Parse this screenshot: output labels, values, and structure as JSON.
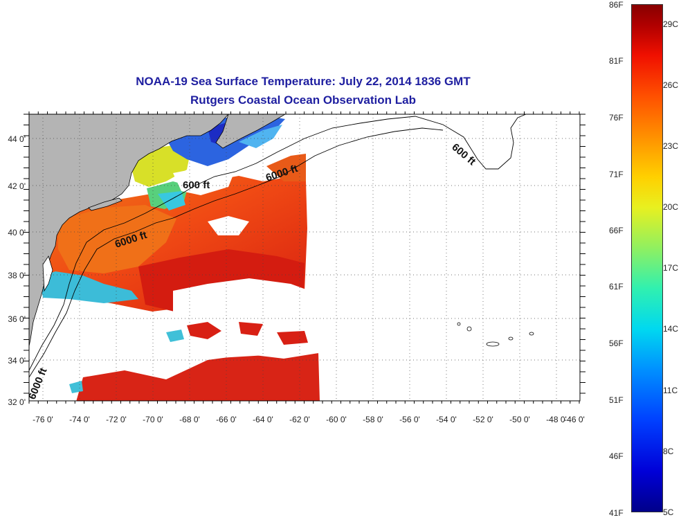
{
  "title": {
    "line1": "NOAA-19 Sea Surface Temperature:  July 22, 2014 1836 GMT",
    "line2": "Rutgers Coastal Ocean Observation Lab"
  },
  "map": {
    "longitude_labels": [
      "-76 0'",
      "-74 0'",
      "-72 0'",
      "-70 0'",
      "-68 0'",
      "-66 0'",
      "-64 0'",
      "-62 0'",
      "-60 0'",
      "-58 0'",
      "-56 0'",
      "-54 0'",
      "-52 0'",
      "-50 0'",
      "-48 0'",
      "-46 0'"
    ],
    "latitude_labels": [
      "44 0'",
      "42 0'",
      "40 0'",
      "38 0'",
      "36 0'",
      "34 0'",
      "32 0'"
    ],
    "contour_labels": [
      "600 ft",
      "6000 ft",
      "6000 ft",
      "600 ft",
      "6000 ft"
    ],
    "colors": {
      "land": "#b4b4b4",
      "no_data": "#ffffff",
      "title": "#1e1ea0"
    }
  },
  "colorbar": {
    "fahrenheit_labels": [
      "86F",
      "81F",
      "76F",
      "71F",
      "66F",
      "61F",
      "56F",
      "51F",
      "46F",
      "41F"
    ],
    "celsius_labels": [
      "29C",
      "26C",
      "23C",
      "20C",
      "17C",
      "14C",
      "11C",
      "8C",
      "5C"
    ]
  }
}
